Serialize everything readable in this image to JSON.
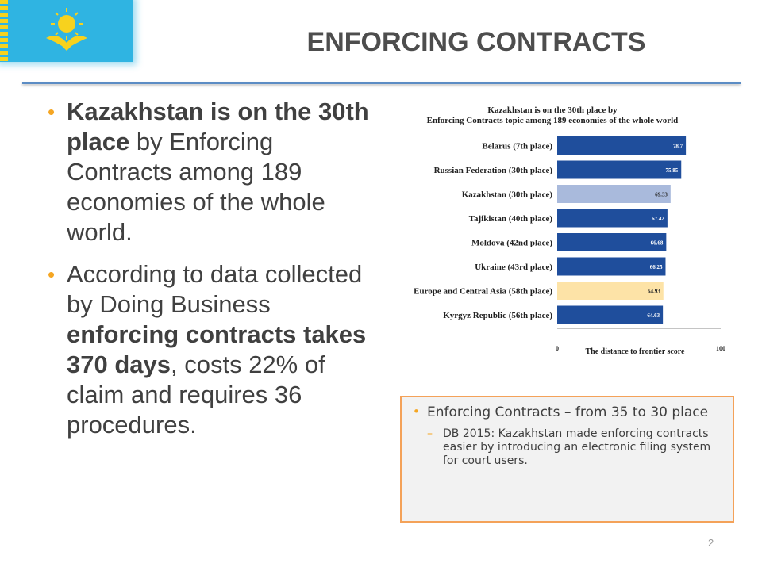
{
  "header": {
    "title": "ENFORCING CONTRACTS"
  },
  "bullets": [
    {
      "parts": [
        {
          "text": "Kazakhstan is on the 30th place",
          "bold": true
        },
        {
          "text": " by Enforcing Contracts among 189 economies of the whole world.",
          "bold": false
        }
      ]
    },
    {
      "parts": [
        {
          "text": "According to data collected by Doing Business ",
          "bold": false
        },
        {
          "text": "enforcing contracts takes 370 days",
          "bold": true
        },
        {
          "text": ", costs 22% of claim and requires 36 procedures.",
          "bold": false
        }
      ]
    }
  ],
  "note_box": {
    "main": "Enforcing Contracts – from 35 to 30 place",
    "sub": "DB 2015: Kazakhstan made enforcing contracts easier by introducing an electronic filing system for court users."
  },
  "page_number": "2",
  "colors": {
    "accent_bullet": "#f5a623",
    "bar_dark": "#1f4e9c",
    "bar_highlight": "#a9badc",
    "bar_region": "#fde3a7",
    "box_border": "#f4a259",
    "rule": "#5b8cc4",
    "flag_blue": "#2fb4e2",
    "flag_gold": "#f7d21e"
  },
  "icons": {
    "flag": "kazakhstan-flag-icon"
  },
  "chart_data": {
    "type": "bar",
    "orientation": "horizontal",
    "title": "Kazakhstan is on the 30th place by\nEnforcing Contracts topic among 189 economies of the whole world",
    "xlabel": "The distance to frontier score",
    "ylabel": "",
    "xlim": [
      0,
      100
    ],
    "x_ticks": [
      "0",
      "100"
    ],
    "grid": false,
    "categories": [
      "Belarus (7th place)",
      "Russian Federation (30th place)",
      "Kazakhstan (30th place)",
      "Tajikistan (40th place)",
      "Moldova (42nd place)",
      "Ukraine (43rd place)",
      "Europe and Central Asia (58th place)",
      "Kyrgyz Republic (56th place)"
    ],
    "values": [
      78.7,
      75.85,
      69.33,
      67.42,
      66.68,
      66.25,
      64.93,
      64.63
    ],
    "value_labels": [
      "78.7",
      "75.85",
      "69.33",
      "67.42",
      "66.68",
      "66.25",
      "64.93",
      "64.63"
    ],
    "bar_colors": [
      "#1f4e9c",
      "#1f4e9c",
      "#a9badc",
      "#1f4e9c",
      "#1f4e9c",
      "#1f4e9c",
      "#fde3a7",
      "#1f4e9c"
    ],
    "value_label_colors": [
      "#ffffff",
      "#ffffff",
      "#2a2a2a",
      "#ffffff",
      "#ffffff",
      "#ffffff",
      "#2a2a2a",
      "#ffffff"
    ]
  }
}
